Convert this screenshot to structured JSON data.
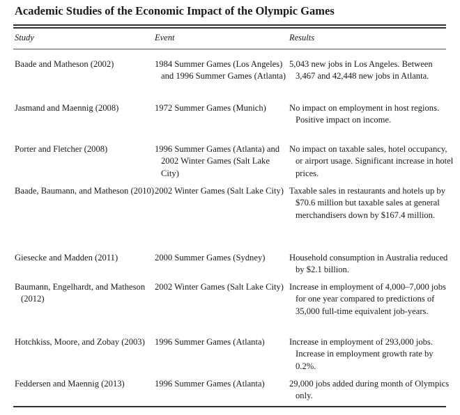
{
  "table": {
    "title": "Academic Studies of the Economic Impact of the Olympic Games",
    "headers": {
      "study": "Study",
      "event": "Event",
      "results": "Results"
    },
    "rows": [
      {
        "study": "Baade and Matheson (2002)",
        "event": "1984 Summer Games (Los Angeles) and 1996 Summer Games (Atlanta)",
        "results": "5,043 new jobs in Los Angeles. Between 3,467 and 42,448 new jobs in Atlanta."
      },
      {
        "study": "Jasmand and Maennig (2008)",
        "event": "1972 Summer Games (Munich)",
        "results": "No impact on employment in host regions. Positive impact on income."
      },
      {
        "study": "Porter and Fletcher (2008)",
        "event": "1996 Summer Games (Atlanta) and 2002 Winter Games (Salt Lake City)",
        "results": "No impact on taxable sales, hotel occupancy, or airport usage. Significant increase in hotel prices."
      },
      {
        "study": "Baade, Baumann, and Matheson (2010)",
        "event": "2002 Winter Games (Salt Lake City)",
        "results": "Taxable sales in restaurants and hotels up by $70.6 million but taxable sales at general merchandisers down by $167.4 million."
      },
      {
        "study": "Giesecke and Madden (2011)",
        "event": "2000 Summer Games (Sydney)",
        "results": "Household consumption in Australia reduced by $2.1 billion."
      },
      {
        "study": "Baumann, Engelhardt, and Matheson (2012)",
        "event": "2002 Winter Games (Salt Lake City)",
        "results": "Increase in employment of 4,000–7,000 jobs for one year compared to predictions of 35,000 full-time equivalent job-years."
      },
      {
        "study": "Hotchkiss, Moore, and Zobay (2003)",
        "event": "1996 Summer Games (Atlanta)",
        "results": "Increase in employment of 293,000 jobs. Increase in employment growth rate by 0.2%."
      },
      {
        "study": "Feddersen and Maennig (2013)",
        "event": "1996 Summer Games (Atlanta)",
        "results": "29,000 jobs added during month of Olympics only."
      }
    ]
  }
}
